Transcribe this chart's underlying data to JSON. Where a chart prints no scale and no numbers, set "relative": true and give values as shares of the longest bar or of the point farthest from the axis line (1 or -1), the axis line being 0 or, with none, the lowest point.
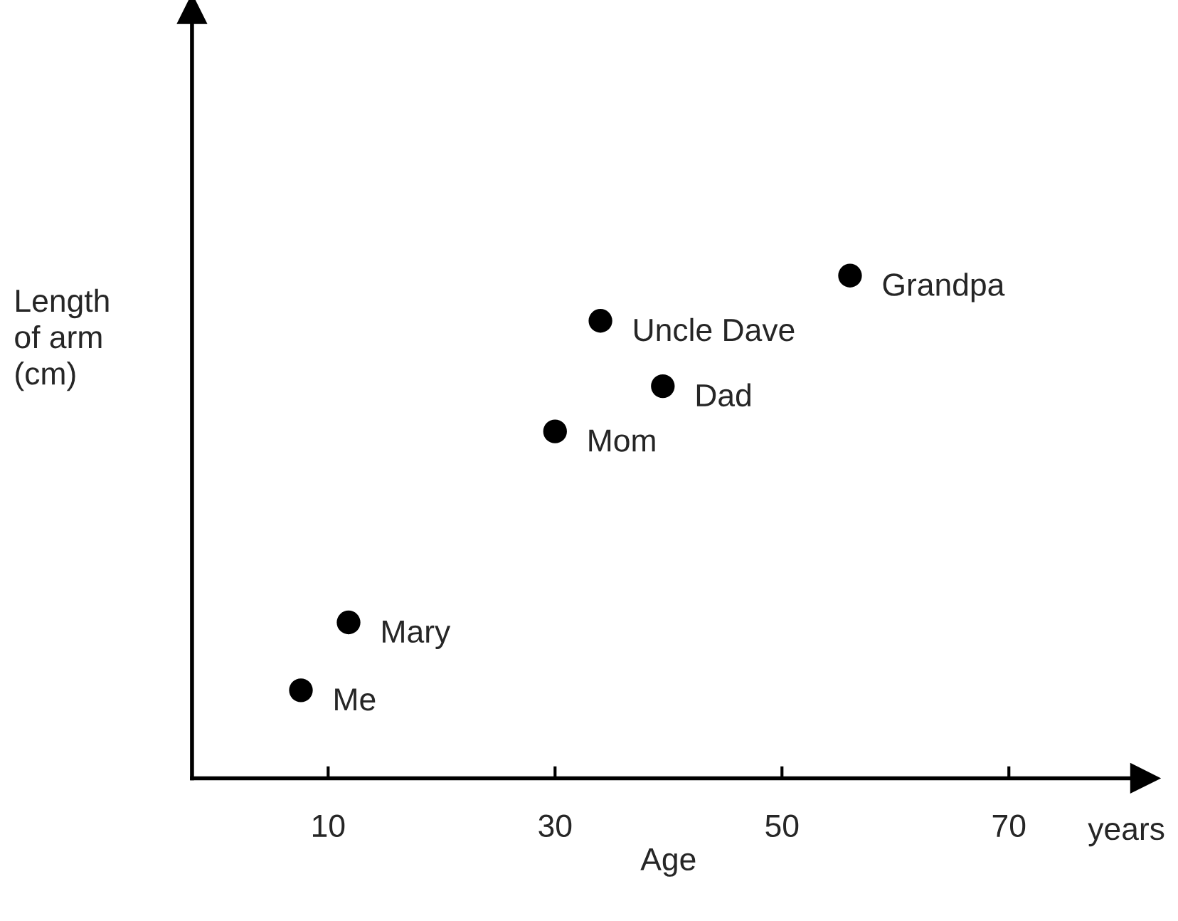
{
  "chart_data": {
    "type": "scatter",
    "xlabel": "Age",
    "ylabel": "Length\nof arm\n(cm)",
    "relative": true,
    "x": [
      7.6,
      11.8,
      30,
      34,
      39.5,
      56
    ],
    "values": [
      0.175,
      0.31,
      0.69,
      0.91,
      0.78,
      1
    ],
    "color": "#000000",
    "marker": "circle",
    "xlim": [
      -2,
      82
    ],
    "xticks": [
      10,
      30,
      50,
      70
    ],
    "tick_labels": "x",
    "grid": false,
    "annotations": [
      {
        "text": "Me",
        "x": 7.6,
        "y": 0.175
      },
      {
        "text": "Mary",
        "x": 11.8,
        "y": 0.31
      },
      {
        "text": "Mom",
        "x": 30,
        "y": 0.69
      },
      {
        "text": "Uncle Dave",
        "x": 34,
        "y": 0.91
      },
      {
        "text": "Dad",
        "x": 39.5,
        "y": 0.78
      },
      {
        "text": "Grandpa",
        "x": 56,
        "y": 1
      },
      "years"
    ]
  }
}
